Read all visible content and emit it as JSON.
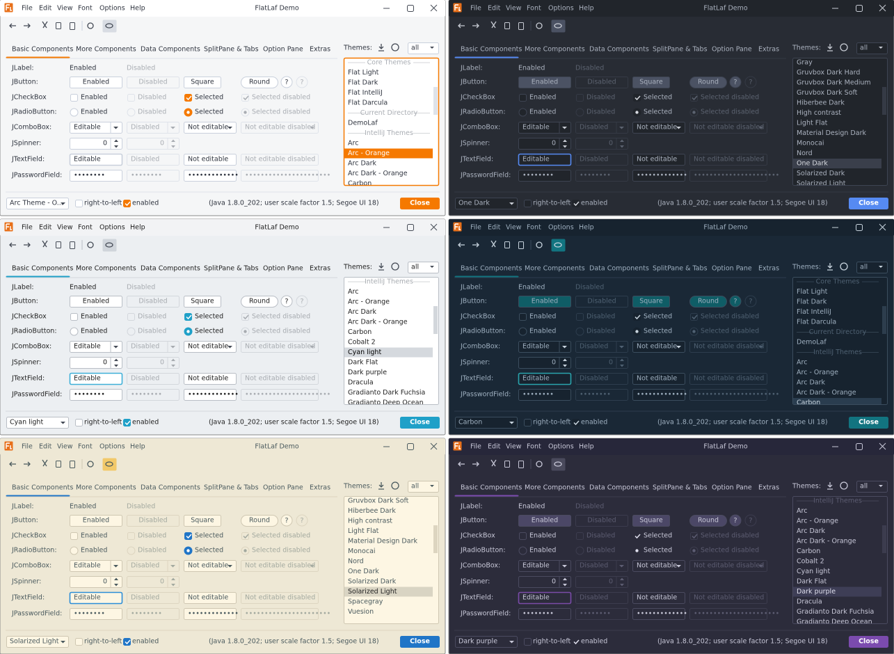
{
  "window": {
    "title": "FlatLaf Demo",
    "menu": [
      "File",
      "Edit",
      "View",
      "Font",
      "Options",
      "Help"
    ]
  },
  "tabs": [
    "Basic Components",
    "More Components",
    "Data Components",
    "SplitPane & Tabs",
    "Option Pane",
    "Extras"
  ],
  "themes": {
    "label": "Themes:",
    "filter": "all"
  },
  "form": {
    "rows": [
      "JLabel:",
      "JButton:",
      "JCheckBox",
      "JRadioButton:",
      "JComboBox:",
      "JSpinner:",
      "JTextField:",
      "JPasswordField:"
    ],
    "label": [
      "Enabled",
      "Disabled"
    ],
    "button": [
      "Enabled",
      "Disabled",
      "Square",
      "Round"
    ],
    "help": "?",
    "checkbox": [
      "Enabled",
      "Disabled",
      "Selected",
      "Selected disabled"
    ],
    "radio": [
      "Enabled",
      "Disabled",
      "Selected",
      "Selected disabled"
    ],
    "combo": [
      "Editable",
      "Disabled",
      "Not editable",
      "Not editable disabled"
    ],
    "spinner": [
      "0",
      "0"
    ],
    "textfield": [
      "Editable",
      "Disabled",
      "Not editable",
      "Not editable disabled"
    ],
    "password": [
      "••••••••",
      "••••••••",
      "•••••••••••••",
      "••••••••••••••••••••••"
    ]
  },
  "footer": {
    "rtl": "right-to-left",
    "enabled": "enabled",
    "info": "(Java 1.8.0_202;  user scale factor 1.5; Segoe UI 18)",
    "close": "Close"
  },
  "panels": [
    {
      "theme": "Arc Theme - O...",
      "list": [
        {
          "label": "Core Themes",
          "group": true
        },
        {
          "label": "Flat Light"
        },
        {
          "label": "Flat Dark"
        },
        {
          "label": "Flat IntelliJ"
        },
        {
          "label": "Flat Darcula"
        },
        {
          "label": "Current Directory",
          "group": true
        },
        {
          "label": "DemoLaf"
        },
        {
          "label": "IntelliJ Themes",
          "group": true
        },
        {
          "label": "Arc"
        },
        {
          "label": "Arc - Orange",
          "selected": true
        },
        {
          "label": "Arc Dark"
        },
        {
          "label": "Arc Dark - Orange"
        },
        {
          "label": "Carbon"
        }
      ]
    },
    {
      "theme": "One Dark",
      "list": [
        {
          "label": "Gray"
        },
        {
          "label": "Gruvbox Dark Hard"
        },
        {
          "label": "Gruvbox Dark Medium"
        },
        {
          "label": "Gruvbox Dark Soft"
        },
        {
          "label": "Hiberbee Dark"
        },
        {
          "label": "High contrast"
        },
        {
          "label": "Light Flat"
        },
        {
          "label": "Material Design Dark"
        },
        {
          "label": "Monocai"
        },
        {
          "label": "Nord"
        },
        {
          "label": "One Dark",
          "selected": true
        },
        {
          "label": "Solarized Dark"
        },
        {
          "label": "Solarized Light"
        }
      ]
    },
    {
      "theme": "Cyan light",
      "list": [
        {
          "label": "IntelliJ Themes",
          "group": true
        },
        {
          "label": "Arc"
        },
        {
          "label": "Arc - Orange"
        },
        {
          "label": "Arc Dark"
        },
        {
          "label": "Arc Dark - Orange"
        },
        {
          "label": "Carbon"
        },
        {
          "label": "Cobalt 2"
        },
        {
          "label": "Cyan light",
          "selected": true
        },
        {
          "label": "Dark Flat"
        },
        {
          "label": "Dark purple"
        },
        {
          "label": "Dracula"
        },
        {
          "label": "Gradianto Dark Fuchsia"
        },
        {
          "label": "Gradianto Deep Ocean"
        }
      ]
    },
    {
      "theme": "Carbon",
      "list": [
        {
          "label": "Core Themes",
          "group": true
        },
        {
          "label": "Flat Light"
        },
        {
          "label": "Flat Dark"
        },
        {
          "label": "Flat IntelliJ"
        },
        {
          "label": "Flat Darcula"
        },
        {
          "label": "Current Directory",
          "group": true
        },
        {
          "label": "DemoLaf"
        },
        {
          "label": "IntelliJ Themes",
          "group": true
        },
        {
          "label": "Arc"
        },
        {
          "label": "Arc - Orange"
        },
        {
          "label": "Arc Dark"
        },
        {
          "label": "Arc Dark - Orange"
        },
        {
          "label": "Carbon",
          "selected": true
        }
      ]
    },
    {
      "theme": "Solarized Light",
      "list": [
        {
          "label": "Gruvbox Dark Soft"
        },
        {
          "label": "Hiberbee Dark"
        },
        {
          "label": "High contrast"
        },
        {
          "label": "Light Flat"
        },
        {
          "label": "Material Design Dark"
        },
        {
          "label": "Monocai"
        },
        {
          "label": "Nord"
        },
        {
          "label": "One Dark"
        },
        {
          "label": "Solarized Dark"
        },
        {
          "label": "Solarized Light",
          "selected": true
        },
        {
          "label": "Spacegray"
        },
        {
          "label": "Vuesion"
        }
      ]
    },
    {
      "theme": "Dark purple",
      "list": [
        {
          "label": "IntelliJ Themes",
          "group": true
        },
        {
          "label": "Arc"
        },
        {
          "label": "Arc - Orange"
        },
        {
          "label": "Arc Dark"
        },
        {
          "label": "Arc Dark - Orange"
        },
        {
          "label": "Carbon"
        },
        {
          "label": "Cobalt 2"
        },
        {
          "label": "Cyan light"
        },
        {
          "label": "Dark Flat"
        },
        {
          "label": "Dark purple",
          "selected": true
        },
        {
          "label": "Dracula"
        },
        {
          "label": "Gradianto Dark Fuchsia"
        },
        {
          "label": "Gradianto Deep Ocean"
        }
      ]
    }
  ]
}
